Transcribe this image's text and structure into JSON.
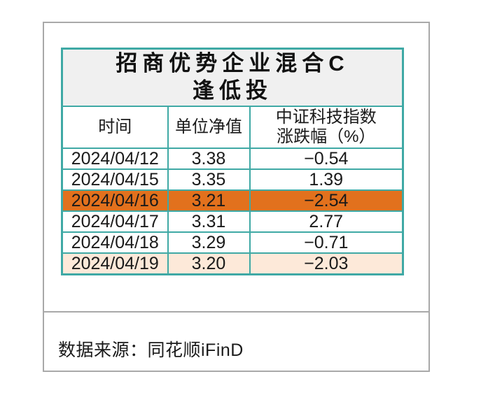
{
  "card": {
    "table": {
      "title_lines": [
        "招商优势企业混合C",
        "逢低投"
      ],
      "headers": {
        "time": "时间",
        "nav": "单位净值",
        "index_line1": "中证科技指数",
        "index_line2": "涨跌幅（%）"
      },
      "rows": [
        {
          "date": "2024/04/12",
          "nav": "3.38",
          "change": "−0.54",
          "highlight": "none"
        },
        {
          "date": "2024/04/15",
          "nav": "3.35",
          "change": "1.39",
          "highlight": "none"
        },
        {
          "date": "2024/04/16",
          "nav": "3.21",
          "change": "−2.54",
          "highlight": "orange"
        },
        {
          "date": "2024/04/17",
          "nav": "3.31",
          "change": "2.77",
          "highlight": "none"
        },
        {
          "date": "2024/04/18",
          "nav": "3.29",
          "change": "−0.71",
          "highlight": "none"
        },
        {
          "date": "2024/04/19",
          "nav": "3.20",
          "change": "−2.03",
          "highlight": "peach"
        }
      ]
    },
    "source_note": "数据来源：同花顺iFinD"
  },
  "colors": {
    "table_border_teal": "#3fa9a5",
    "row_highlight_orange": "#e2711d",
    "row_highlight_peach": "#fde9d9",
    "title_background_gray": "#f0f0f0",
    "frame_border_gray": "#a9a9a9",
    "text_black": "#1a1a1a"
  },
  "chart_data": {
    "type": "table",
    "title": "招商优势企业混合C 逢低投",
    "columns": [
      "时间",
      "单位净值",
      "中证科技指数涨跌幅（%）"
    ],
    "rows": [
      [
        "2024/04/12",
        3.38,
        -0.54
      ],
      [
        "2024/04/15",
        3.35,
        1.39
      ],
      [
        "2024/04/16",
        3.21,
        -2.54
      ],
      [
        "2024/04/17",
        3.31,
        2.77
      ],
      [
        "2024/04/18",
        3.29,
        -0.71
      ],
      [
        "2024/04/19",
        3.2,
        -2.03
      ]
    ],
    "highlighted_rows": [
      {
        "date": "2024/04/16",
        "style": "orange-fill"
      },
      {
        "date": "2024/04/19",
        "style": "peach-fill"
      }
    ],
    "source": "数据来源：同花顺iFinD"
  }
}
